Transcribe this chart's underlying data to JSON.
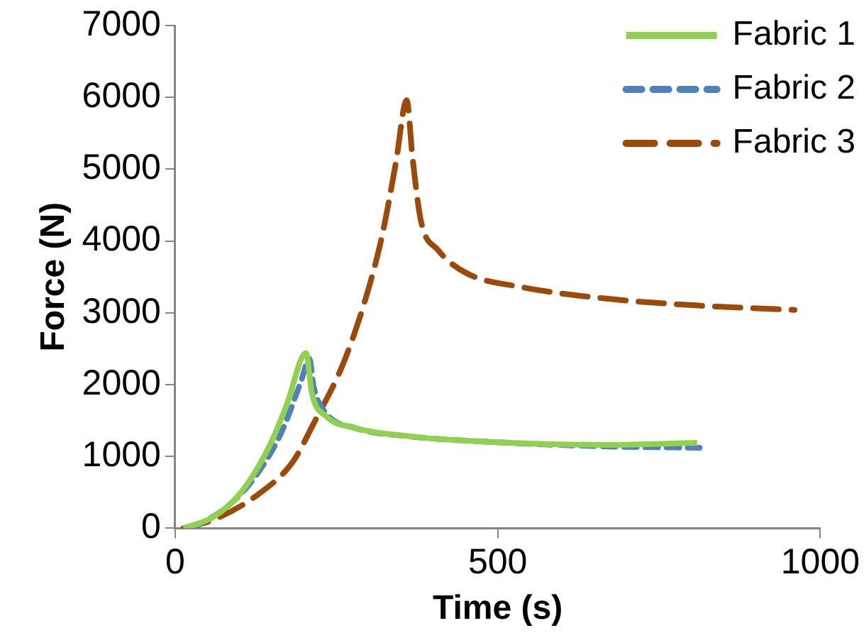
{
  "chart_data": {
    "type": "line",
    "xlabel": "Time (s)",
    "ylabel": "Force (N)",
    "xlim": [
      0,
      1000
    ],
    "xticks": [
      0,
      500,
      1000
    ],
    "ylim": [
      0,
      7000
    ],
    "yticks": [
      0,
      1000,
      2000,
      3000,
      4000,
      5000,
      6000,
      7000
    ],
    "legend": "top right",
    "marker": "none",
    "series": [
      {
        "name": "Fabric 1",
        "color": "#92d050",
        "line_style": "solid",
        "x": [
          13,
          60,
          104,
          147,
          173,
          203,
          212,
          234,
          277,
          363,
          493,
          666,
          809
        ],
        "values": [
          0,
          160,
          520,
          1160,
          1720,
          2440,
          1880,
          1560,
          1400,
          1280,
          1200,
          1160,
          1190
        ]
      },
      {
        "name": "Fabric 2",
        "color": "#4f81bd",
        "line_style": "dashed",
        "x": [
          26,
          78,
          121,
          164,
          195,
          208,
          215,
          234,
          277,
          363,
          493,
          666,
          813
        ],
        "values": [
          0,
          280,
          680,
          1320,
          2040,
          2360,
          1960,
          1600,
          1400,
          1280,
          1200,
          1140,
          1120
        ]
      },
      {
        "name": "Fabric 3",
        "color": "#9c4a0a",
        "line_style": "dashed",
        "x": [
          13,
          60,
          130,
          182,
          216,
          260,
          294,
          320,
          342,
          359,
          368,
          381,
          407,
          450,
          536,
          666,
          813,
          960
        ],
        "values": [
          0,
          120,
          480,
          920,
          1480,
          2280,
          3160,
          4040,
          5080,
          5960,
          5160,
          4280,
          3880,
          3560,
          3360,
          3200,
          3100,
          3040
        ]
      }
    ]
  }
}
